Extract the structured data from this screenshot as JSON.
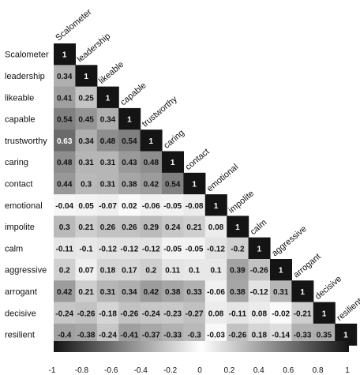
{
  "chart_data": {
    "type": "heatmap",
    "subtype": "lower-triangular correlation matrix",
    "variables": [
      "Scalometer",
      "leadership",
      "likeable",
      "capable",
      "trustworthy",
      "caring",
      "contact",
      "emotional",
      "impolite",
      "calm",
      "aggressive",
      "arrogant",
      "decisive",
      "resilient"
    ],
    "matrix": [
      [
        "1"
      ],
      [
        "0.34",
        "1"
      ],
      [
        "0.41",
        "0.25",
        "1"
      ],
      [
        "0.54",
        "0.45",
        "0.34",
        "1"
      ],
      [
        "0.63",
        "0.34",
        "0.48",
        "0.54",
        "1"
      ],
      [
        "0.48",
        "0.31",
        "0.31",
        "0.43",
        "0.48",
        "1"
      ],
      [
        "0.44",
        "0.3",
        "0.31",
        "0.38",
        "0.42",
        "0.54",
        "1"
      ],
      [
        "-0.04",
        "0.05",
        "-0.07",
        "0.02",
        "-0.06",
        "-0.05",
        "-0.08",
        "1"
      ],
      [
        "0.3",
        "0.21",
        "0.26",
        "0.26",
        "0.29",
        "0.24",
        "0.21",
        "0.08",
        "1"
      ],
      [
        "-0.11",
        "-0.1",
        "-0.12",
        "-0.12",
        "-0.12",
        "-0.05",
        "-0.05",
        "-0.12",
        "-0.2",
        "1"
      ],
      [
        "0.2",
        "0.07",
        "0.18",
        "0.17",
        "0.2",
        "0.11",
        "0.1",
        "0.1",
        "0.39",
        "-0.26",
        "1"
      ],
      [
        "0.42",
        "0.21",
        "0.31",
        "0.34",
        "0.42",
        "0.38",
        "0.33",
        "-0.06",
        "0.38",
        "-0.12",
        "0.31",
        "1"
      ],
      [
        "-0.24",
        "-0.26",
        "-0.18",
        "-0.26",
        "-0.24",
        "-0.23",
        "-0.27",
        "0.08",
        "-0.11",
        "0.08",
        "-0.02",
        "-0.21",
        "1"
      ],
      [
        "-0.4",
        "-0.38",
        "-0.24",
        "-0.41",
        "-0.37",
        "-0.33",
        "-0.3",
        "-0.03",
        "-0.26",
        "0.18",
        "-0.14",
        "-0.33",
        "0.35",
        "1"
      ]
    ],
    "colorbar": {
      "ticks": [
        "-1",
        "-0.8",
        "-0.6",
        "-0.4",
        "-0.2",
        "0",
        "0.2",
        "0.4",
        "0.6",
        "0.8",
        "1"
      ],
      "range": [
        -1,
        1
      ],
      "colors": {
        "low": "#141414",
        "mid": "#ffffff",
        "high": "#141414"
      },
      "placement": "bottom"
    }
  }
}
